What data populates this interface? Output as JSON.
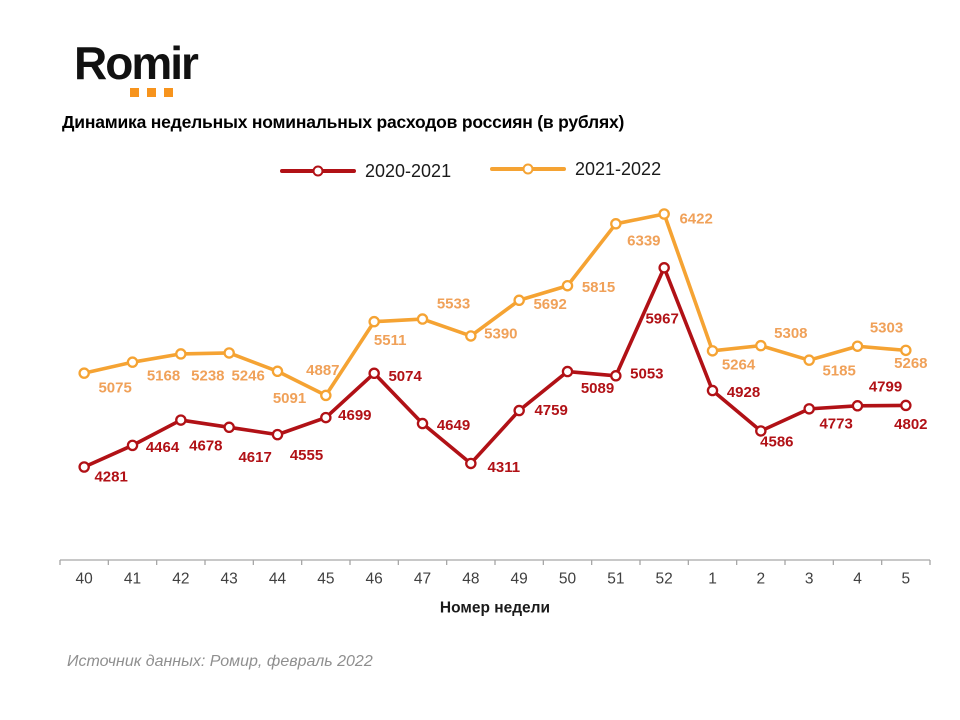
{
  "logo": {
    "text": "Romir",
    "dots_color": "#F7941D",
    "dots_count": 3
  },
  "title": "Динамика недельных номинальных расходов россиян (в рублях)",
  "legend": [
    {
      "label": "2020-2021",
      "color": "#B11116"
    },
    {
      "label": "2021-2022",
      "color": "#F5A333"
    }
  ],
  "chart_data": {
    "type": "line",
    "title": "Динамика недельных номинальных расходов россиян (в рублях)",
    "xlabel": "Номер недели",
    "ylabel": "",
    "categories": [
      "40",
      "41",
      "42",
      "43",
      "44",
      "45",
      "46",
      "47",
      "48",
      "49",
      "50",
      "51",
      "52",
      "1",
      "2",
      "3",
      "4",
      "5"
    ],
    "ylim": [
      3500,
      6800
    ],
    "grid": false,
    "legend_position": "top",
    "axis_color": "#A6A6A6",
    "tick_label_color": "#404040",
    "series": [
      {
        "name": "2020-2021",
        "color": "#B11116",
        "label_color": "#B11116",
        "values": [
          4281,
          4464,
          4678,
          4617,
          4555,
          4699,
          5074,
          4649,
          4311,
          4759,
          5089,
          5053,
          5967,
          4928,
          4586,
          4773,
          4799,
          4802
        ],
        "label_offsets": [
          [
            27,
            10
          ],
          [
            30,
            2
          ],
          [
            25,
            26
          ],
          [
            26,
            30
          ],
          [
            29,
            21
          ],
          [
            29,
            -2
          ],
          [
            31,
            3
          ],
          [
            31,
            2
          ],
          [
            33,
            4
          ],
          [
            32,
            0
          ],
          [
            30,
            17
          ],
          [
            31,
            -2
          ],
          [
            -2,
            51
          ],
          [
            31,
            2
          ],
          [
            16,
            11
          ],
          [
            27,
            15
          ],
          [
            28,
            -19
          ],
          [
            5,
            19
          ]
        ]
      },
      {
        "name": "2021-2022",
        "color": "#F5A333",
        "label_color": "#F0A159",
        "values": [
          5075,
          5168,
          5238,
          5246,
          5091,
          4887,
          5511,
          5533,
          5390,
          5692,
          5815,
          6339,
          6422,
          5264,
          5308,
          5185,
          5303,
          5268
        ],
        "label_offsets": [
          [
            31,
            15
          ],
          [
            31,
            14
          ],
          [
            27,
            22
          ],
          [
            19,
            23
          ],
          [
            12,
            27
          ],
          [
            -3,
            -25
          ],
          [
            16,
            19
          ],
          [
            31,
            -15
          ],
          [
            30,
            -2
          ],
          [
            31,
            4
          ],
          [
            31,
            2
          ],
          [
            28,
            17
          ],
          [
            32,
            5
          ],
          [
            26,
            14
          ],
          [
            30,
            -12
          ],
          [
            30,
            11
          ],
          [
            29,
            -18
          ],
          [
            5,
            13
          ]
        ]
      }
    ]
  },
  "source": "Источник данных: Ромир, февраль 2022"
}
